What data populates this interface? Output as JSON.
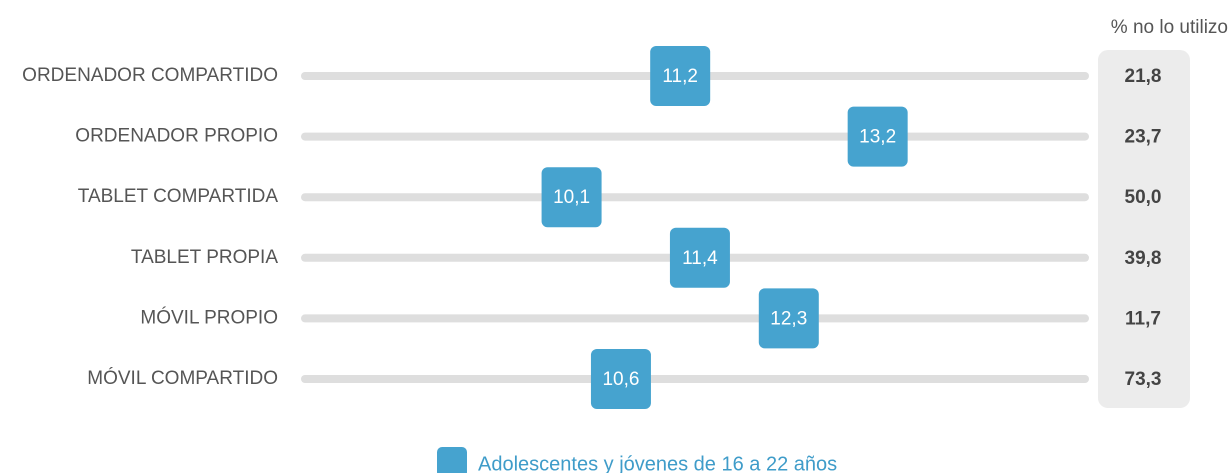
{
  "chart_data": {
    "type": "dot",
    "categories": [
      "ORDENADOR COMPARTIDO",
      "ORDENADOR PROPIO",
      "TABLET COMPARTIDA",
      "TABLET PROPIA",
      "MÓVIL PROPIO",
      "MÓVIL COMPARTIDO"
    ],
    "series": [
      {
        "name": "Adolescentes y jóvenes de 16 a 22 años",
        "color": "#46a3cf",
        "values": [
          11.2,
          13.2,
          10.1,
          11.4,
          12.3,
          10.6
        ],
        "value_labels": [
          "11,2",
          "13,2",
          "10,1",
          "11,4",
          "12,3",
          "10,6"
        ]
      }
    ],
    "xlim": [
      7.4,
      15.3
    ],
    "no_use": {
      "label": "% no lo utilizo",
      "values": [
        21.8,
        23.7,
        50.0,
        39.8,
        11.7,
        73.3
      ],
      "value_labels": [
        "21,8",
        "23,7",
        "50,0",
        "39,8",
        "11,7",
        "73,3"
      ]
    },
    "legend": "bottom"
  }
}
